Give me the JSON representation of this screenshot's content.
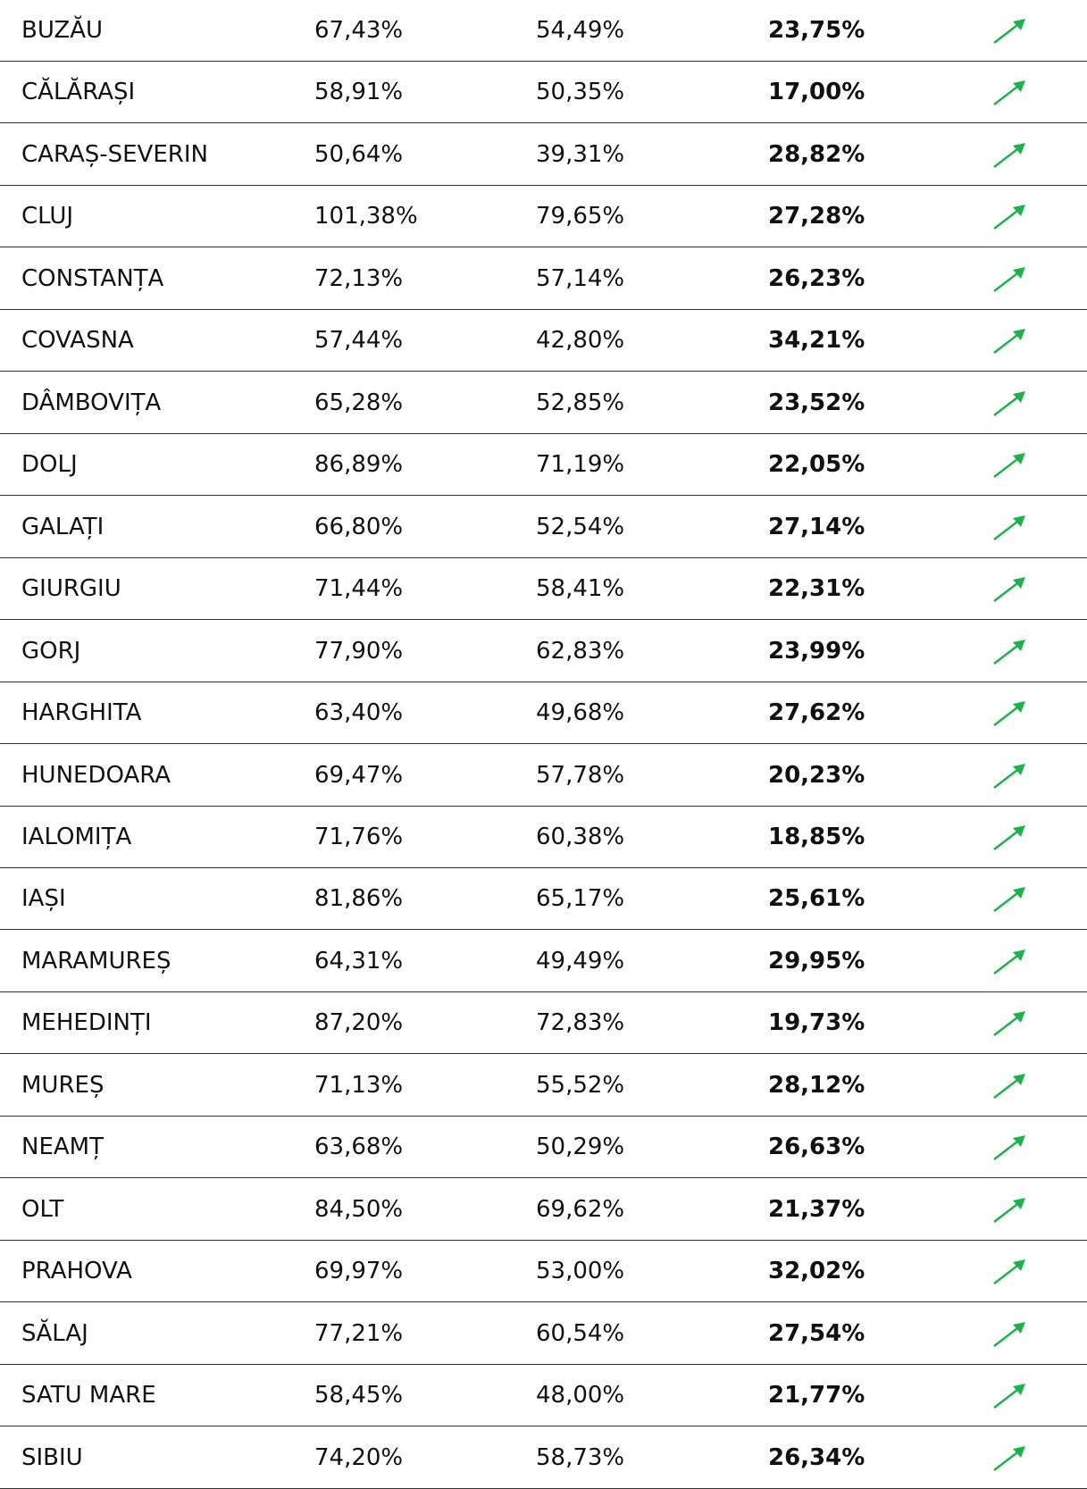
{
  "table": {
    "rows": [
      [
        "BUZĂU",
        "67,43%",
        "54,49%",
        "23,75%"
      ],
      [
        "CĂLĂRAȘI",
        "58,91%",
        "50,35%",
        "17,00%"
      ],
      [
        "CARAȘ-SEVERIN",
        "50,64%",
        "39,31%",
        "28,82%"
      ],
      [
        "CLUJ",
        "101,38%",
        "79,65%",
        "27,28%"
      ],
      [
        "CONSTANȚA",
        "72,13%",
        "57,14%",
        "26,23%"
      ],
      [
        "COVASNA",
        "57,44%",
        "42,80%",
        "34,21%"
      ],
      [
        "DÂMBOVIȚA",
        "65,28%",
        "52,85%",
        "23,52%"
      ],
      [
        "DOLJ",
        "86,89%",
        "71,19%",
        "22,05%"
      ],
      [
        "GALAȚI",
        "66,80%",
        "52,54%",
        "27,14%"
      ],
      [
        "GIURGIU",
        "71,44%",
        "58,41%",
        "22,31%"
      ],
      [
        "GORJ",
        "77,90%",
        "62,83%",
        "23,99%"
      ],
      [
        "HARGHITA",
        "63,40%",
        "49,68%",
        "27,62%"
      ],
      [
        "HUNEDOARA",
        "69,47%",
        "57,78%",
        "20,23%"
      ],
      [
        "IALOMIȚA",
        "71,76%",
        "60,38%",
        "18,85%"
      ],
      [
        "IAȘI",
        "81,86%",
        "65,17%",
        "25,61%"
      ],
      [
        "MARAMUREȘ",
        "64,31%",
        "49,49%",
        "29,95%"
      ],
      [
        "MEHEDINȚI",
        "87,20%",
        "72,83%",
        "19,73%"
      ],
      [
        "MUREȘ",
        "71,13%",
        "55,52%",
        "28,12%"
      ],
      [
        "NEAMȚ",
        "63,68%",
        "50,29%",
        "26,63%"
      ],
      [
        "OLT",
        "84,50%",
        "69,62%",
        "21,37%"
      ],
      [
        "PRAHOVA",
        "69,97%",
        "53,00%",
        "32,02%"
      ],
      [
        "SĂLAJ",
        "77,21%",
        "60,54%",
        "27,54%"
      ],
      [
        "SATU MARE",
        "58,45%",
        "48,00%",
        "21,77%"
      ],
      [
        "SIBIU",
        "74,20%",
        "58,73%",
        "26,34%"
      ]
    ]
  }
}
